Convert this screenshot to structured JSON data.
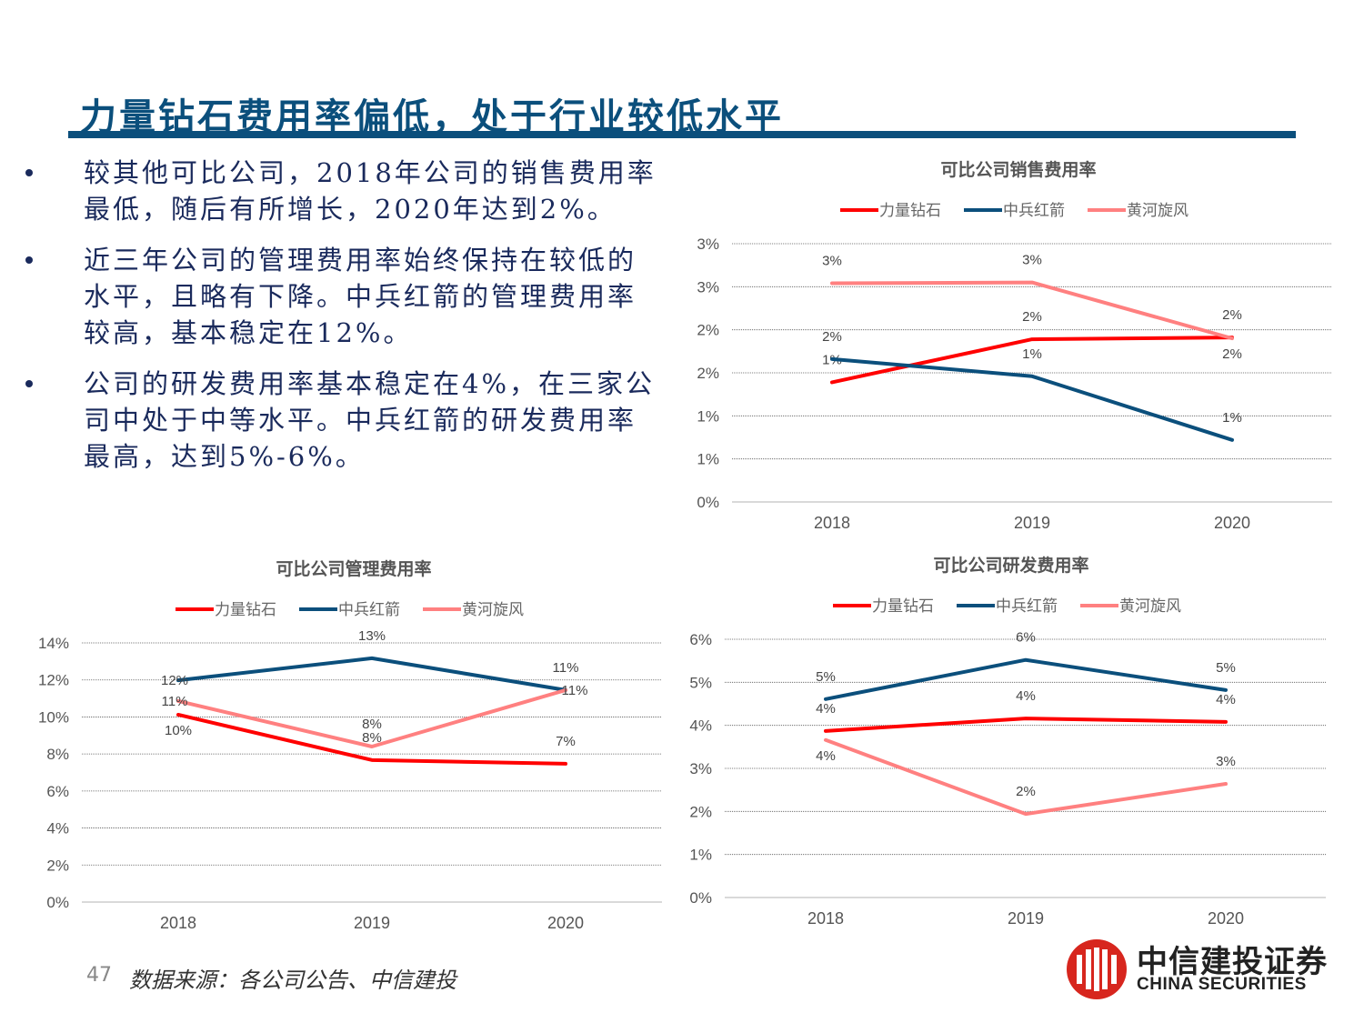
{
  "header": {
    "title": "力量钻石费用率偏低，处于行业较低水平"
  },
  "bullets": [
    "较其他可比公司，2018年公司的销售费用率最低，随后有所增长，2020年达到2%。",
    "近三年公司的管理费用率始终保持在较低的水平，且略有下降。中兵红箭的管理费用率较高，基本稳定在12%。",
    "公司的研发费用率基本稳定在4%，在三家公司中处于中等水平。中兵红箭的研发费用率最高，达到5%-6%。"
  ],
  "footer": {
    "page_number": "47",
    "source": "数据来源：各公司公告、中信建投"
  },
  "logo": {
    "cn": "中信建投证券",
    "en": "CHINA SECURITIES",
    "color": "#D7261E"
  },
  "colors": {
    "title": "#0B4F7C",
    "text": "#1A2A5C"
  },
  "chart_data": [
    {
      "type": "line",
      "title": "可比公司销售费用率",
      "categories": [
        "2018",
        "2019",
        "2020"
      ],
      "ylim": [
        0,
        3.0
      ],
      "yticks": [
        0,
        0.5,
        1.0,
        1.5,
        2.0,
        2.5,
        3.0
      ],
      "ytick_labels": [
        "0%",
        "1%",
        "1%",
        "2%",
        "2%",
        "3%",
        "3%"
      ],
      "grid": true,
      "legend": "top",
      "series": [
        {
          "name": "力量钻石",
          "color": "#FF0000",
          "values": [
            1.39,
            1.89,
            1.91
          ],
          "labels": [
            "1%",
            "2%",
            "2%"
          ],
          "label_pos": [
            "above",
            "above",
            "above"
          ]
        },
        {
          "name": "中兵红箭",
          "color": "#0B4F7C",
          "values": [
            1.66,
            1.46,
            0.72
          ],
          "labels": [
            "2%",
            "1%",
            "1%"
          ],
          "label_pos": [
            "above",
            "above",
            "above"
          ]
        },
        {
          "name": "黄河旋风",
          "color": "#FF8080",
          "values": [
            2.54,
            2.55,
            1.9
          ],
          "labels": [
            "3%",
            "3%",
            "2%"
          ],
          "label_pos": [
            "above",
            "above",
            "below"
          ]
        }
      ]
    },
    {
      "type": "line",
      "title": "可比公司管理费用率",
      "categories": [
        "2018",
        "2019",
        "2020"
      ],
      "ylim": [
        0,
        14
      ],
      "yticks": [
        0,
        2,
        4,
        6,
        8,
        10,
        12,
        14
      ],
      "ytick_labels": [
        "0%",
        "2%",
        "4%",
        "6%",
        "8%",
        "10%",
        "12%",
        "14%"
      ],
      "grid": true,
      "legend": "top",
      "series": [
        {
          "name": "力量钻石",
          "color": "#FF0000",
          "values": [
            10.12,
            7.67,
            7.47
          ],
          "labels": [
            "10%",
            "8%",
            "7%"
          ],
          "label_pos": [
            "below",
            "above",
            "above"
          ]
        },
        {
          "name": "中兵红箭",
          "color": "#0B4F7C",
          "values": [
            11.98,
            13.17,
            11.45
          ],
          "labels": [
            "12%",
            "13%",
            "11%"
          ],
          "label_pos": [
            "center",
            "above",
            "above"
          ]
        },
        {
          "name": "黄河旋风",
          "color": "#FF8080",
          "values": [
            10.86,
            8.4,
            11.45
          ],
          "labels": [
            "11%",
            "8%",
            "11%"
          ],
          "label_pos": [
            "center",
            "above",
            "right"
          ]
        }
      ]
    },
    {
      "type": "line",
      "title": "可比公司研发费用率",
      "categories": [
        "2018",
        "2019",
        "2020"
      ],
      "ylim": [
        0,
        6
      ],
      "yticks": [
        0,
        1,
        2,
        3,
        4,
        5,
        6
      ],
      "ytick_labels": [
        "0%",
        "1%",
        "2%",
        "3%",
        "4%",
        "5%",
        "6%"
      ],
      "grid": true,
      "legend": "top",
      "series": [
        {
          "name": "力量钻石",
          "color": "#FF0000",
          "values": [
            3.87,
            4.16,
            4.08
          ],
          "labels": [
            "4%",
            "4%",
            "4%"
          ],
          "label_pos": [
            "above",
            "above",
            "above"
          ]
        },
        {
          "name": "中兵红箭",
          "color": "#0B4F7C",
          "values": [
            4.61,
            5.52,
            4.82
          ],
          "labels": [
            "5%",
            "6%",
            "5%"
          ],
          "label_pos": [
            "above",
            "above",
            "above"
          ]
        },
        {
          "name": "黄河旋风",
          "color": "#FF8080",
          "values": [
            3.66,
            1.94,
            2.64
          ],
          "labels": [
            "4%",
            "2%",
            "3%"
          ],
          "label_pos": [
            "below",
            "above",
            "above"
          ]
        }
      ]
    }
  ]
}
